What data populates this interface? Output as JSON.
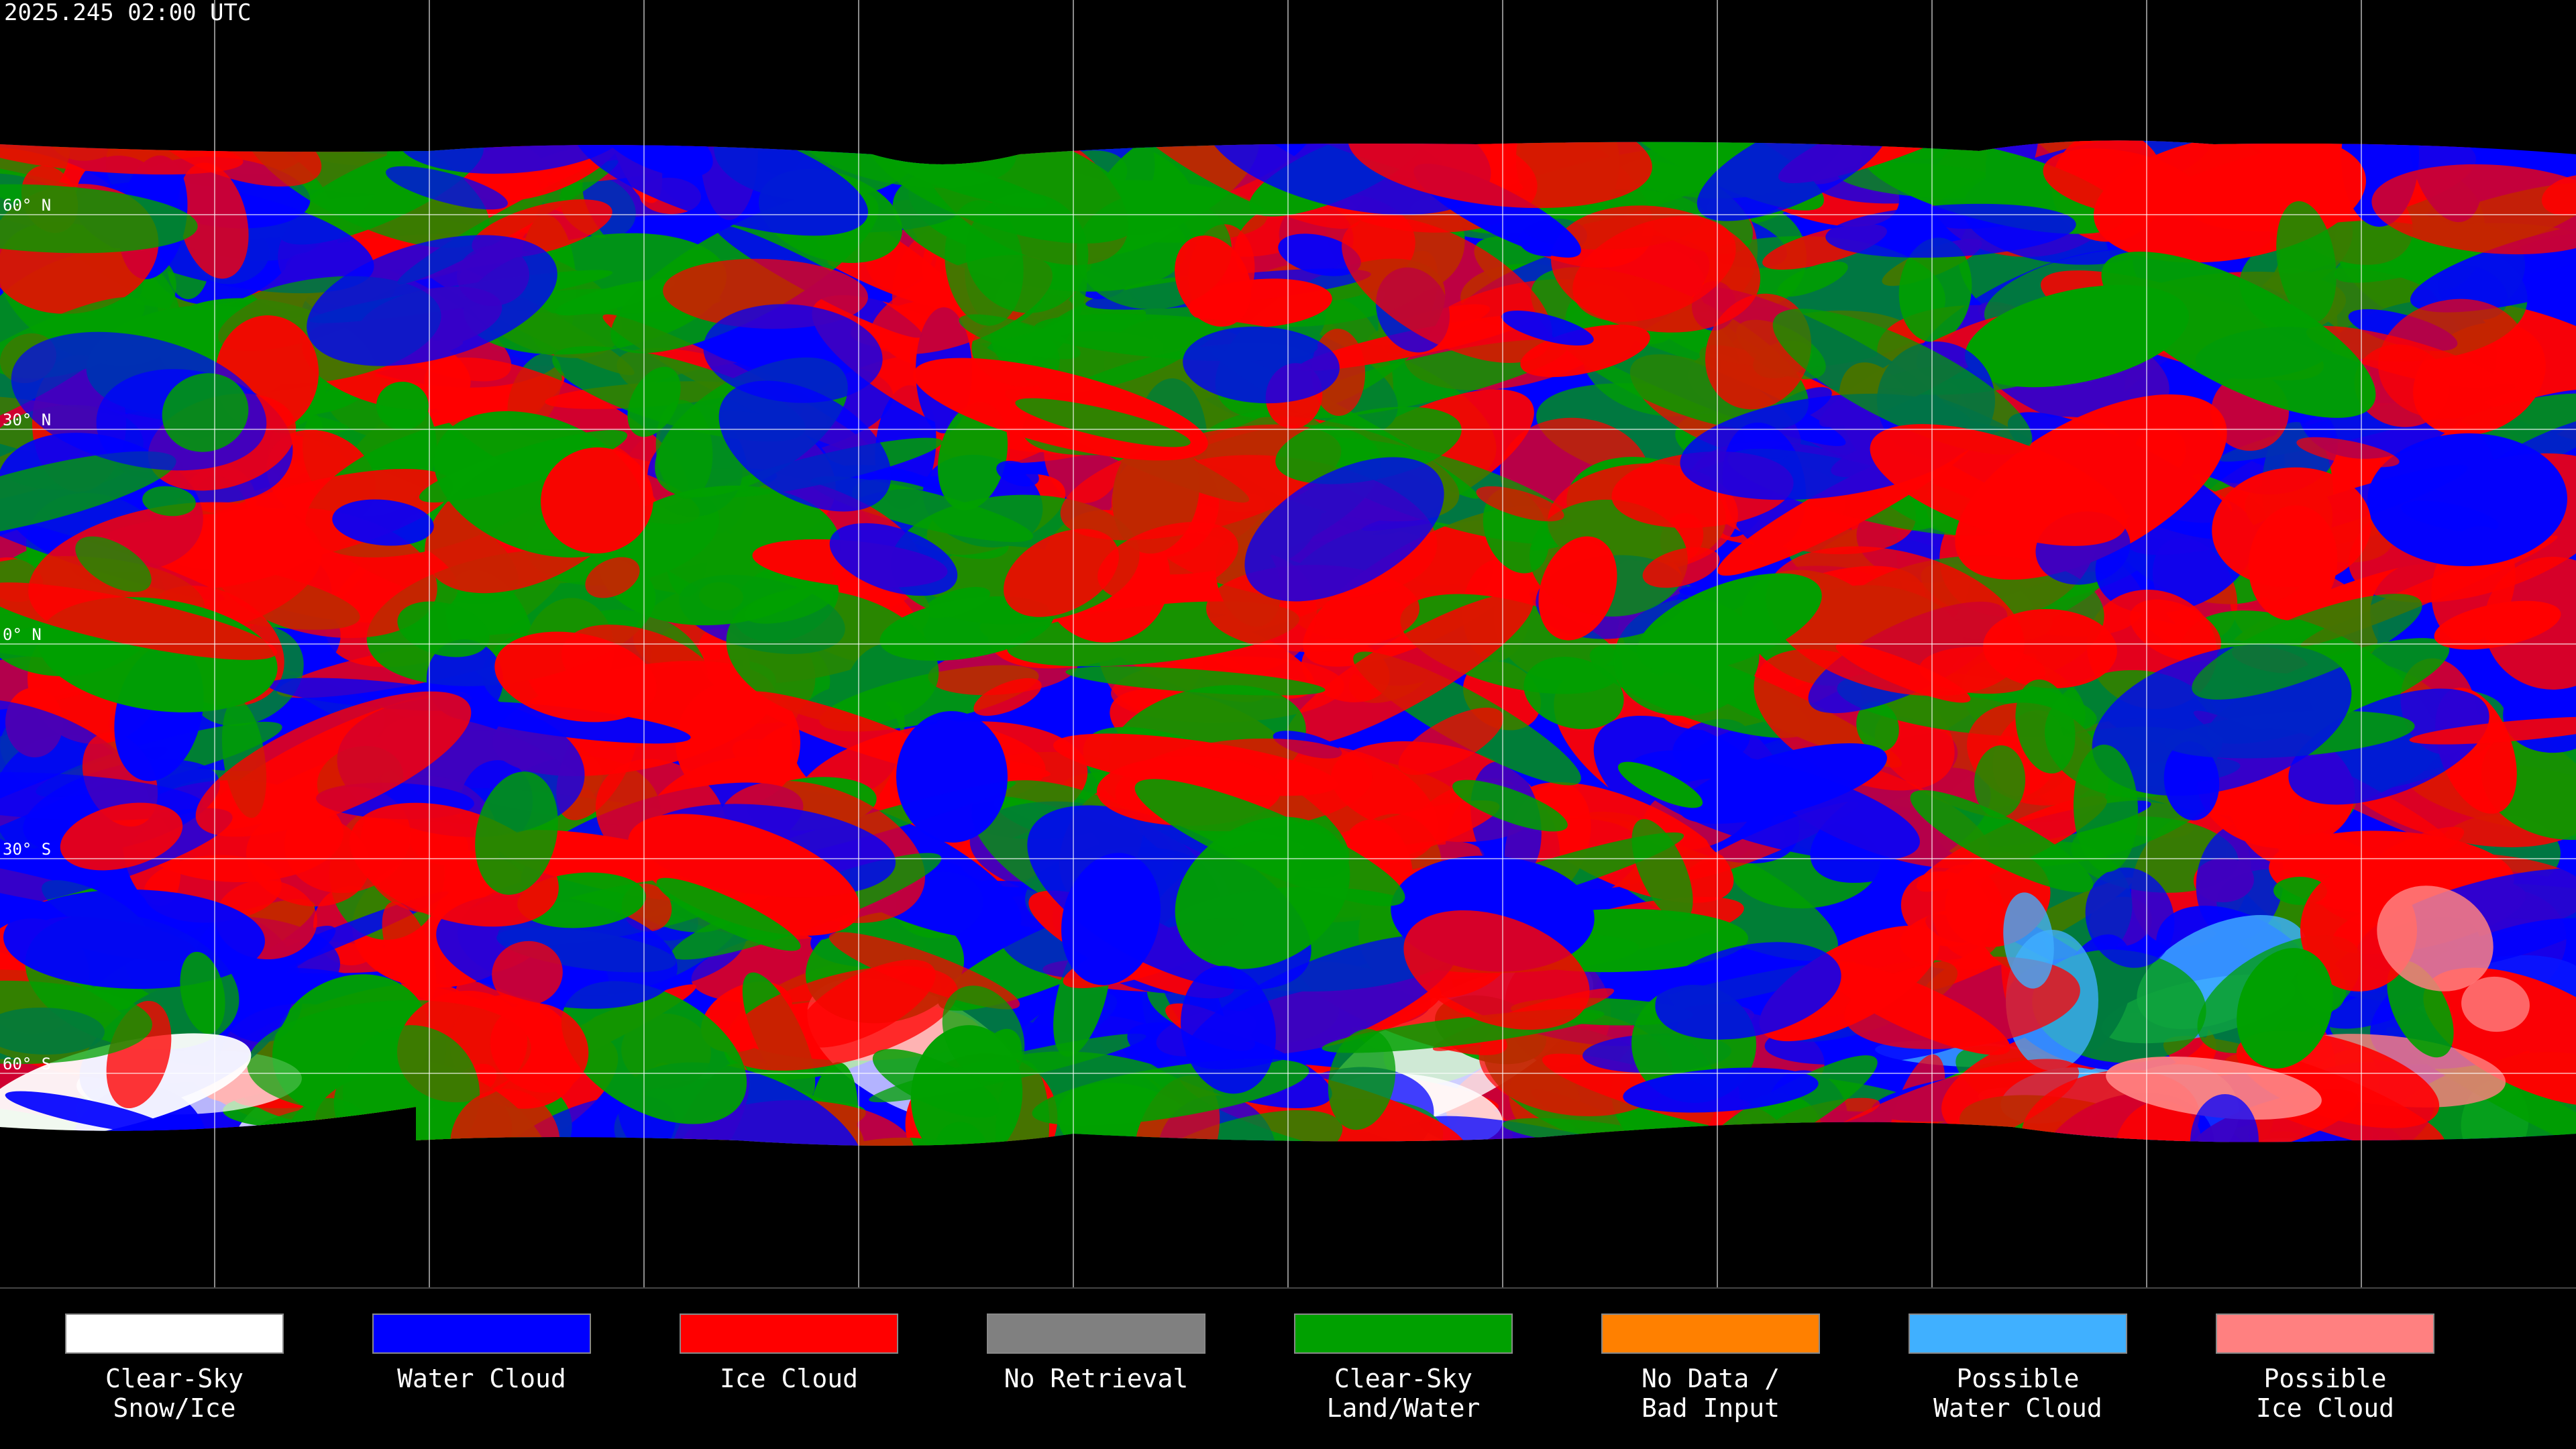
{
  "header": {
    "title": "2025.245 02:00 UTC"
  },
  "map": {
    "latitude_labels": [
      "60° N",
      "30° N",
      "0° N",
      "30° S",
      "60° S"
    ]
  },
  "legend": {
    "items": [
      {
        "label": [
          "Clear-Sky",
          "Snow/Ice"
        ],
        "color": "#ffffff"
      },
      {
        "label": [
          "Water Cloud"
        ],
        "color": "#0000ff"
      },
      {
        "label": [
          "Ice Cloud"
        ],
        "color": "#ff0000"
      },
      {
        "label": [
          "No Retrieval"
        ],
        "color": "#808080"
      },
      {
        "label": [
          "Clear-Sky",
          "Land/Water"
        ],
        "color": "#00a000"
      },
      {
        "label": [
          "No Data /",
          "Bad Input"
        ],
        "color": "#ff8000"
      },
      {
        "label": [
          "Possible",
          "Water Cloud"
        ],
        "color": "#40b0ff"
      },
      {
        "label": [
          "Possible",
          "Ice Cloud"
        ],
        "color": "#ff8080"
      }
    ]
  }
}
